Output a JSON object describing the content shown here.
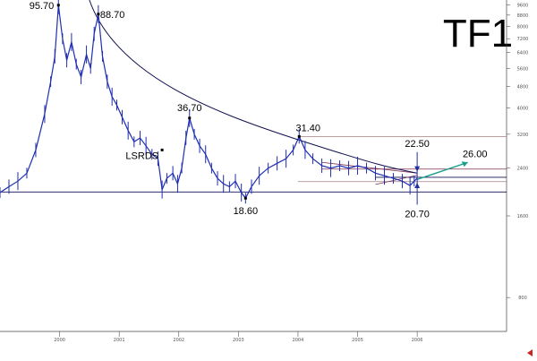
{
  "chart_data": {
    "type": "line",
    "title": "TF1",
    "ylim": [
      6,
      100
    ],
    "y_scale": "log",
    "x_range": [
      1998.0,
      2006.5
    ],
    "colors": {
      "price": "#1f2fb0",
      "trend": "#101050",
      "projection": "#1a9e8e",
      "level": "#a08080",
      "triangle": "#803050",
      "arrow": "#2030a0"
    },
    "x_ticks": [
      {
        "x": 1999.0,
        "label": "2000"
      },
      {
        "x": 2000.0,
        "label": "2001"
      },
      {
        "x": 2001.0,
        "label": "2002"
      },
      {
        "x": 2002.0,
        "label": "2003"
      },
      {
        "x": 2003.0,
        "label": "2004"
      },
      {
        "x": 2004.0,
        "label": "2005"
      },
      {
        "x": 2005.0,
        "label": "2006"
      }
    ],
    "y_ticks": [
      {
        "y": 96,
        "label": "9600"
      },
      {
        "y": 88,
        "label": "8800"
      },
      {
        "y": 80,
        "label": "8000"
      },
      {
        "y": 72,
        "label": "7200"
      },
      {
        "y": 64,
        "label": "6400"
      },
      {
        "y": 56,
        "label": "5600"
      },
      {
        "y": 48,
        "label": "4800"
      },
      {
        "y": 40,
        "label": "4000"
      },
      {
        "y": 32,
        "label": "3200"
      },
      {
        "y": 24,
        "label": "2400"
      },
      {
        "y": 16,
        "label": "1600"
      },
      {
        "y": 8,
        "label": "800"
      }
    ],
    "price_series": [
      {
        "x": 1998.0,
        "y": 19.5
      },
      {
        "x": 1998.15,
        "y": 20.5
      },
      {
        "x": 1998.3,
        "y": 21.5
      },
      {
        "x": 1998.45,
        "y": 23.0
      },
      {
        "x": 1998.6,
        "y": 28.0
      },
      {
        "x": 1998.75,
        "y": 38.0
      },
      {
        "x": 1998.85,
        "y": 50.0
      },
      {
        "x": 1998.92,
        "y": 62.0
      },
      {
        "x": 1998.98,
        "y": 95.7
      },
      {
        "x": 1999.05,
        "y": 72.0
      },
      {
        "x": 1999.12,
        "y": 60.0
      },
      {
        "x": 1999.2,
        "y": 70.0
      },
      {
        "x": 1999.28,
        "y": 58.0
      },
      {
        "x": 1999.36,
        "y": 52.0
      },
      {
        "x": 1999.45,
        "y": 63.0
      },
      {
        "x": 1999.52,
        "y": 56.0
      },
      {
        "x": 1999.58,
        "y": 75.0
      },
      {
        "x": 1999.65,
        "y": 88.7
      },
      {
        "x": 1999.72,
        "y": 62.0
      },
      {
        "x": 1999.8,
        "y": 50.0
      },
      {
        "x": 1999.88,
        "y": 44.0
      },
      {
        "x": 1999.96,
        "y": 41.0
      },
      {
        "x": 2000.05,
        "y": 37.0
      },
      {
        "x": 2000.15,
        "y": 33.0
      },
      {
        "x": 2000.25,
        "y": 30.0
      },
      {
        "x": 2000.35,
        "y": 31.0
      },
      {
        "x": 2000.45,
        "y": 29.0
      },
      {
        "x": 2000.55,
        "y": 27.0
      },
      {
        "x": 2000.65,
        "y": 26.0
      },
      {
        "x": 2000.72,
        "y": 20.0
      },
      {
        "x": 2000.8,
        "y": 22.0
      },
      {
        "x": 2000.9,
        "y": 23.0
      },
      {
        "x": 2000.98,
        "y": 21.0
      },
      {
        "x": 2001.05,
        "y": 24.0
      },
      {
        "x": 2001.12,
        "y": 31.0
      },
      {
        "x": 2001.18,
        "y": 36.7
      },
      {
        "x": 2001.26,
        "y": 32.0
      },
      {
        "x": 2001.35,
        "y": 29.0
      },
      {
        "x": 2001.45,
        "y": 27.0
      },
      {
        "x": 2001.55,
        "y": 24.0
      },
      {
        "x": 2001.65,
        "y": 22.0
      },
      {
        "x": 2001.75,
        "y": 21.0
      },
      {
        "x": 2001.85,
        "y": 20.5
      },
      {
        "x": 2001.95,
        "y": 21.5
      },
      {
        "x": 2002.05,
        "y": 19.5
      },
      {
        "x": 2002.12,
        "y": 18.6
      },
      {
        "x": 2002.22,
        "y": 20.5
      },
      {
        "x": 2002.35,
        "y": 22.5
      },
      {
        "x": 2002.5,
        "y": 24.0
      },
      {
        "x": 2002.65,
        "y": 25.0
      },
      {
        "x": 2002.8,
        "y": 26.0
      },
      {
        "x": 2002.92,
        "y": 28.0
      },
      {
        "x": 2003.02,
        "y": 31.4
      },
      {
        "x": 2003.12,
        "y": 28.0
      },
      {
        "x": 2003.25,
        "y": 26.0
      },
      {
        "x": 2003.4,
        "y": 24.5
      },
      {
        "x": 2003.55,
        "y": 24.0
      },
      {
        "x": 2003.7,
        "y": 24.5
      },
      {
        "x": 2003.85,
        "y": 24.0
      },
      {
        "x": 2004.0,
        "y": 24.5
      },
      {
        "x": 2004.15,
        "y": 24.0
      },
      {
        "x": 2004.3,
        "y": 23.0
      },
      {
        "x": 2004.45,
        "y": 22.5
      },
      {
        "x": 2004.6,
        "y": 22.0
      },
      {
        "x": 2004.75,
        "y": 21.5
      },
      {
        "x": 2004.88,
        "y": 20.7
      },
      {
        "x": 2004.95,
        "y": 21.5
      },
      {
        "x": 2005.0,
        "y": 22.0
      }
    ],
    "lines": [
      {
        "id": "support-18-60",
        "points": [
          [
            1998.0,
            19.6
          ],
          [
            2006.5,
            19.6
          ]
        ],
        "color": "#101050"
      },
      {
        "id": "level-31-40",
        "points": [
          [
            2003.0,
            31.4
          ],
          [
            2006.5,
            31.4
          ]
        ],
        "color": "#a08080"
      },
      {
        "id": "level-24",
        "points": [
          [
            2003.4,
            23.8
          ],
          [
            2006.5,
            23.8
          ]
        ],
        "color": "#803050"
      },
      {
        "id": "level-22-20",
        "points": [
          [
            2004.3,
            22.2
          ],
          [
            2006.5,
            22.2
          ]
        ],
        "color": "#101050"
      },
      {
        "id": "level-21-40",
        "points": [
          [
            2003.0,
            21.4
          ],
          [
            2006.5,
            21.4
          ]
        ],
        "color": "#a08080"
      },
      {
        "id": "triangle-top",
        "points": [
          [
            2003.4,
            25.2
          ],
          [
            2005.0,
            23.0
          ]
        ],
        "color": "#803050"
      },
      {
        "id": "triangle-bottom",
        "points": [
          [
            2004.3,
            20.9
          ],
          [
            2005.0,
            22.6
          ]
        ],
        "color": "#803050"
      },
      {
        "id": "projection-26",
        "points": [
          [
            2005.0,
            21.8
          ],
          [
            2005.85,
            25.2
          ]
        ],
        "color": "#1a9e8e"
      }
    ],
    "arrows": [
      {
        "id": "arrow-22-50",
        "from": [
          2005.0,
          27.5
        ],
        "to": [
          2005.0,
          23.3
        ]
      },
      {
        "id": "arrow-20-70",
        "from": [
          2005.0,
          17.6
        ],
        "to": [
          2005.0,
          21.2
        ]
      }
    ],
    "annotations": [
      {
        "text": "95.70",
        "x": 1998.98,
        "y": 95.7,
        "anchor": "end",
        "dx": -5,
        "dy": 4
      },
      {
        "text": "88.70",
        "x": 1999.65,
        "y": 88.7,
        "anchor": "start",
        "dx": 2,
        "dy": 4
      },
      {
        "text": "36.70",
        "x": 2001.18,
        "y": 36.7,
        "anchor": "middle",
        "dx": 0,
        "dy": -8
      },
      {
        "text": "LSRDS",
        "x": 2000.72,
        "y": 28.0,
        "anchor": "end",
        "dx": -4,
        "dy": 10
      },
      {
        "text": "31.40",
        "x": 2003.02,
        "y": 31.4,
        "anchor": "middle",
        "dx": 10,
        "dy": -6
      },
      {
        "text": "18.60",
        "x": 2002.12,
        "y": 18.6,
        "anchor": "middle",
        "dx": 0,
        "dy": 18
      },
      {
        "text": "22.50",
        "x": 2005.0,
        "y": 27.5,
        "anchor": "middle",
        "dx": 0,
        "dy": -6
      },
      {
        "text": "26.00",
        "x": 2005.85,
        "y": 25.2,
        "anchor": "middle",
        "dx": 8,
        "dy": -6
      },
      {
        "text": "20.70",
        "x": 2005.0,
        "y": 17.6,
        "anchor": "middle",
        "dx": 0,
        "dy": 14
      }
    ]
  }
}
